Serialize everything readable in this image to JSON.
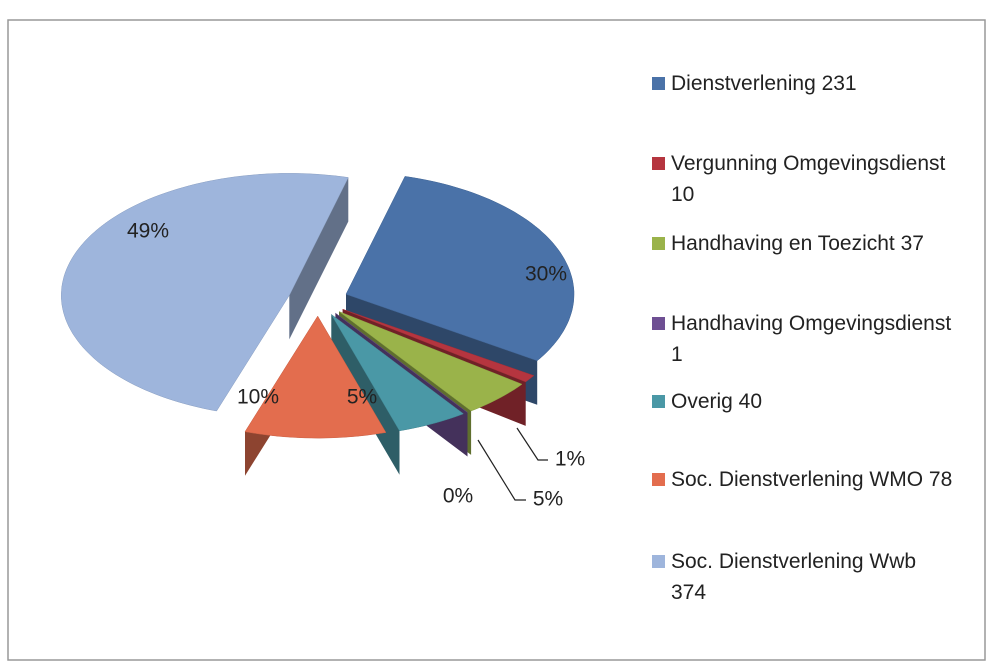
{
  "chart_data": {
    "type": "pie",
    "categories": [
      "Dienstverlening 231",
      "Vergunning Omgevingsdienst 10",
      "Handhaving en Toezicht 37",
      "Handhaving Omgevingsdienst 1",
      "Overig 40",
      "Soc. Dienstverlening WMO 78",
      "Soc. Dienstverlening Wwb 374"
    ],
    "values": [
      30,
      1,
      5,
      0,
      5,
      10,
      49
    ],
    "value_labels": [
      "30%",
      "1%",
      "5%",
      "0%",
      "5%",
      "10%",
      "49%"
    ],
    "colors": [
      "#4a72a8",
      "#b5353f",
      "#9ab34a",
      "#6e4f93",
      "#4a98a6",
      "#e36d4e",
      "#9eb5dc"
    ],
    "legend": "right"
  }
}
